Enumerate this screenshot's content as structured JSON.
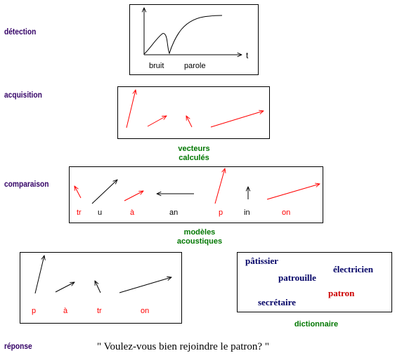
{
  "colors": {
    "stage_label": "#330066",
    "caption": "#007700",
    "red": "#ff0000",
    "navy": "#000066",
    "dict_red": "#cc0000"
  },
  "stages": {
    "detection": "détection",
    "acquisition": "acquisition",
    "comparaison": "comparaison",
    "reponse": "réponse"
  },
  "detection_graph": {
    "t_label": "t",
    "bruit_label": "bruit",
    "parole_label": "parole"
  },
  "captions": {
    "vecteurs_line1": "vecteurs",
    "vecteurs_line2": "calculés",
    "modeles_line1": "modèles",
    "modeles_line2": "acoustiques",
    "dictionnaire": "dictionnaire"
  },
  "comparison_phonemes": [
    {
      "label": "tr",
      "color": "red"
    },
    {
      "label": "u",
      "color": "black"
    },
    {
      "label": "à",
      "color": "red"
    },
    {
      "label": "an",
      "color": "black"
    },
    {
      "label": "p",
      "color": "red"
    },
    {
      "label": "in",
      "color": "black"
    },
    {
      "label": "on",
      "color": "red"
    }
  ],
  "response_phonemes": [
    {
      "label": "p"
    },
    {
      "label": "à"
    },
    {
      "label": "tr"
    },
    {
      "label": "on"
    }
  ],
  "dictionary": [
    {
      "word": "pâtissier",
      "color": "navy"
    },
    {
      "word": "électricien",
      "color": "navy"
    },
    {
      "word": "patrouille",
      "color": "navy"
    },
    {
      "word": "patron",
      "color": "red"
    },
    {
      "word": "secrétaire",
      "color": "navy"
    }
  ],
  "response_sentence": "\" Voulez-vous bien rejoindre le patron? \""
}
